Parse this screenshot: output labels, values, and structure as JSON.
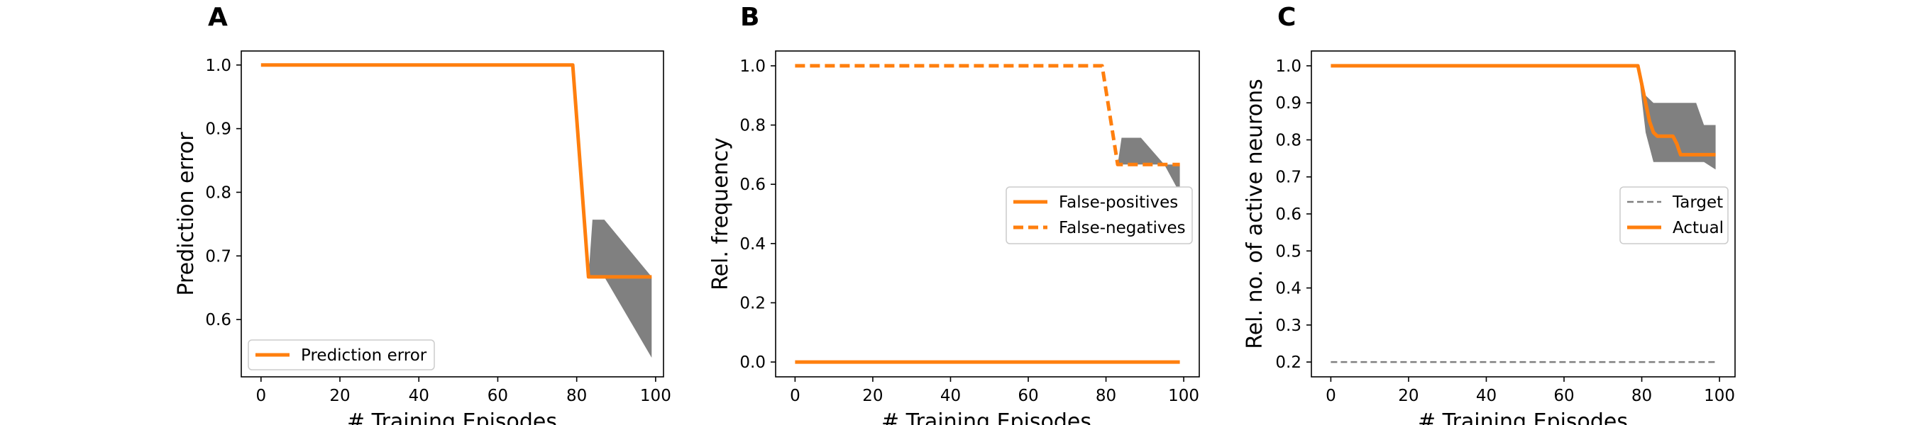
{
  "colors": {
    "orange": "#ff7f0e",
    "band": "#808080",
    "target": "#808080",
    "axis": "#000000"
  },
  "chart_data": [
    {
      "type": "line",
      "panel": "A",
      "xlabel": "# Training Episodes",
      "ylabel": "Prediction error",
      "xlim": [
        -5,
        102
      ],
      "ylim": [
        0.51,
        1.022
      ],
      "xticks": [
        0,
        20,
        40,
        60,
        80,
        100
      ],
      "yticks": [
        0.6,
        0.7,
        0.8,
        0.9,
        1.0
      ],
      "ytick_labels": [
        "0.6",
        "0.7",
        "0.8",
        "0.9",
        "1.0"
      ],
      "legend_position": "lower-left",
      "series": [
        {
          "name": "Prediction error",
          "style": "solid",
          "x": [
            0,
            79,
            83,
            99
          ],
          "y": [
            1.0,
            1.0,
            0.667,
            0.667
          ]
        }
      ],
      "bands": [
        {
          "x": [
            0,
            79,
            83,
            84,
            86,
            87,
            99
          ],
          "upper": [
            1.0,
            1.0,
            0.667,
            0.757,
            0.757,
            0.757,
            0.667
          ],
          "lower": [
            1.0,
            1.0,
            0.667,
            0.667,
            0.667,
            0.667,
            0.54
          ]
        }
      ]
    },
    {
      "type": "line",
      "panel": "B",
      "xlabel": "# Training Episodes",
      "ylabel": "Rel. frequency",
      "xlim": [
        -5,
        104
      ],
      "ylim": [
        -0.05,
        1.05
      ],
      "xticks": [
        0,
        20,
        40,
        60,
        80,
        100
      ],
      "yticks": [
        0.0,
        0.2,
        0.4,
        0.6,
        0.8,
        1.0
      ],
      "ytick_labels": [
        "0.0",
        "0.2",
        "0.4",
        "0.6",
        "0.8",
        "1.0"
      ],
      "legend_position": "center-right",
      "series": [
        {
          "name": "False-positives",
          "style": "solid",
          "x": [
            0,
            99
          ],
          "y": [
            0.0,
            0.0
          ]
        },
        {
          "name": "False-negatives",
          "style": "dashed",
          "x": [
            0,
            79,
            83,
            99
          ],
          "y": [
            1.0,
            1.0,
            0.667,
            0.667
          ]
        }
      ],
      "bands": [
        {
          "x": [
            0,
            79,
            83,
            84,
            86,
            89,
            95,
            99
          ],
          "upper": [
            1.0,
            1.0,
            0.667,
            0.757,
            0.757,
            0.757,
            0.667,
            0.667
          ],
          "lower": [
            1.0,
            1.0,
            0.667,
            0.667,
            0.667,
            0.667,
            0.667,
            0.57
          ]
        }
      ]
    },
    {
      "type": "line",
      "panel": "C",
      "xlabel": "# Training Episodes",
      "ylabel": "Rel. no. of active neurons",
      "xlim": [
        -5,
        104
      ],
      "ylim": [
        0.16,
        1.04
      ],
      "xticks": [
        0,
        20,
        40,
        60,
        80,
        100
      ],
      "yticks": [
        0.2,
        0.3,
        0.4,
        0.5,
        0.6,
        0.7,
        0.8,
        0.9,
        1.0
      ],
      "ytick_labels": [
        "0.2",
        "0.3",
        "0.4",
        "0.5",
        "0.6",
        "0.7",
        "0.8",
        "0.9",
        "1.0"
      ],
      "legend_position": "center-right",
      "series": [
        {
          "name": "Target",
          "style": "dashed-thin",
          "x": [
            0,
            99
          ],
          "y": [
            0.2,
            0.2
          ]
        },
        {
          "name": "Actual",
          "style": "solid",
          "x": [
            0,
            79,
            80,
            81,
            82,
            83,
            84,
            88,
            89,
            90,
            99
          ],
          "y": [
            1.0,
            1.0,
            0.95,
            0.9,
            0.85,
            0.82,
            0.81,
            0.81,
            0.79,
            0.76,
            0.76
          ]
        }
      ],
      "bands": [
        {
          "x": [
            0,
            79,
            81,
            83,
            84,
            88,
            94,
            96,
            99
          ],
          "upper": [
            1.0,
            1.0,
            0.92,
            0.9,
            0.9,
            0.9,
            0.9,
            0.84,
            0.84
          ],
          "lower": [
            1.0,
            1.0,
            0.82,
            0.74,
            0.74,
            0.74,
            0.74,
            0.74,
            0.72
          ]
        }
      ]
    }
  ]
}
